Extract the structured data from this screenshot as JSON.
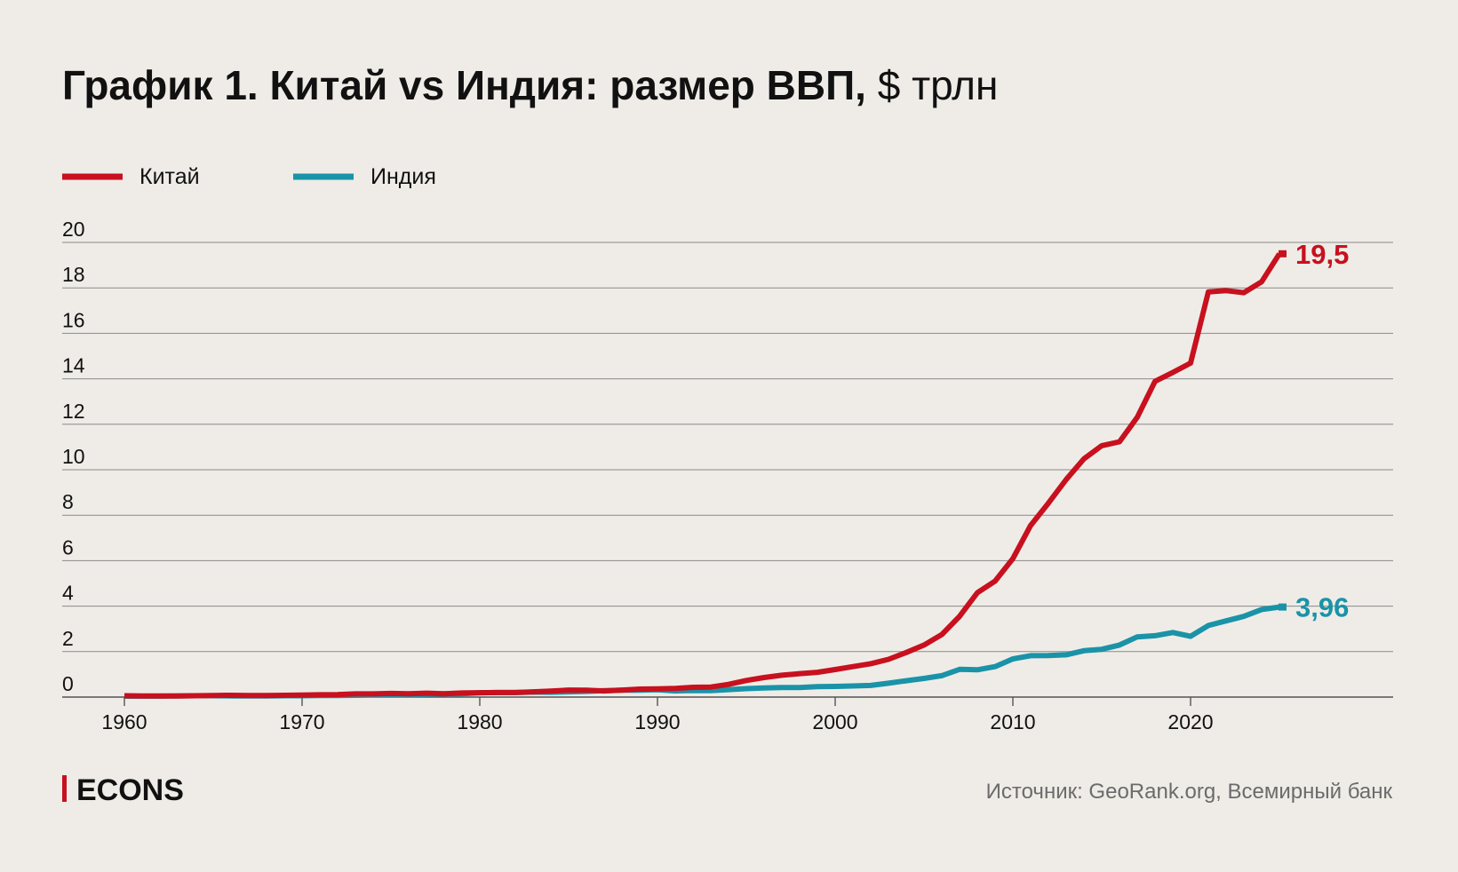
{
  "header": {
    "title_bold": "График 1. Китай vs Индия: размер ВВП,",
    "title_unit": "$ трлн"
  },
  "footer": {
    "logo_text": "ECONS",
    "source": "Источник: GeoRank.org, Всемирный банк"
  },
  "colors": {
    "china": "#c8101e",
    "india": "#1a93a8",
    "grid": "#8a8a8a",
    "background": "#efece7",
    "logo_bar": "#c8101e",
    "source_text": "#6b6b6b"
  },
  "chart_data": {
    "type": "line",
    "title": "График 1. Китай vs Индия: размер ВВП, $ трлн",
    "xlabel": "",
    "ylabel": "",
    "xlim": [
      1960,
      2029
    ],
    "ylim": [
      0,
      20
    ],
    "x_ticks": [
      1960,
      1970,
      1980,
      1990,
      2000,
      2010,
      2020
    ],
    "y_ticks": [
      0,
      2,
      4,
      6,
      8,
      10,
      12,
      14,
      16,
      18,
      20
    ],
    "grid": true,
    "legend_position": "top-left",
    "x": [
      1960,
      1961,
      1962,
      1963,
      1964,
      1965,
      1966,
      1967,
      1968,
      1969,
      1970,
      1971,
      1972,
      1973,
      1974,
      1975,
      1976,
      1977,
      1978,
      1979,
      1980,
      1981,
      1982,
      1983,
      1984,
      1985,
      1986,
      1987,
      1988,
      1989,
      1990,
      1991,
      1992,
      1993,
      1994,
      1995,
      1996,
      1997,
      1998,
      1999,
      2000,
      2001,
      2002,
      2003,
      2004,
      2005,
      2006,
      2007,
      2008,
      2009,
      2010,
      2011,
      2012,
      2013,
      2014,
      2015,
      2016,
      2017,
      2018,
      2019,
      2020,
      2021,
      2022,
      2023,
      2024,
      2025
    ],
    "series": [
      {
        "name": "Китай",
        "color": "#c8101e",
        "end_label": "19,5",
        "values": [
          0.06,
          0.05,
          0.05,
          0.05,
          0.06,
          0.07,
          0.08,
          0.07,
          0.07,
          0.08,
          0.09,
          0.1,
          0.11,
          0.14,
          0.14,
          0.16,
          0.15,
          0.17,
          0.15,
          0.18,
          0.19,
          0.2,
          0.2,
          0.23,
          0.26,
          0.31,
          0.3,
          0.27,
          0.31,
          0.35,
          0.36,
          0.38,
          0.43,
          0.44,
          0.56,
          0.73,
          0.86,
          0.96,
          1.03,
          1.09,
          1.21,
          1.34,
          1.47,
          1.66,
          1.96,
          2.29,
          2.75,
          3.55,
          4.59,
          5.1,
          6.09,
          7.55,
          8.53,
          9.57,
          10.48,
          11.06,
          11.23,
          12.31,
          13.89,
          14.28,
          14.69,
          17.82,
          17.88,
          17.79,
          18.27,
          19.5
        ]
      },
      {
        "name": "Индия",
        "color": "#1a93a8",
        "end_label": "3,96",
        "values": [
          0.04,
          0.04,
          0.04,
          0.05,
          0.06,
          0.06,
          0.05,
          0.05,
          0.05,
          0.06,
          0.06,
          0.07,
          0.07,
          0.08,
          0.1,
          0.1,
          0.1,
          0.12,
          0.14,
          0.15,
          0.19,
          0.2,
          0.2,
          0.22,
          0.21,
          0.23,
          0.25,
          0.28,
          0.3,
          0.3,
          0.32,
          0.27,
          0.29,
          0.28,
          0.33,
          0.37,
          0.4,
          0.42,
          0.42,
          0.46,
          0.47,
          0.49,
          0.51,
          0.61,
          0.72,
          0.82,
          0.94,
          1.22,
          1.2,
          1.34,
          1.68,
          1.82,
          1.83,
          1.86,
          2.04,
          2.1,
          2.29,
          2.65,
          2.7,
          2.84,
          2.67,
          3.15,
          3.35,
          3.55,
          3.85,
          3.96
        ]
      }
    ]
  }
}
